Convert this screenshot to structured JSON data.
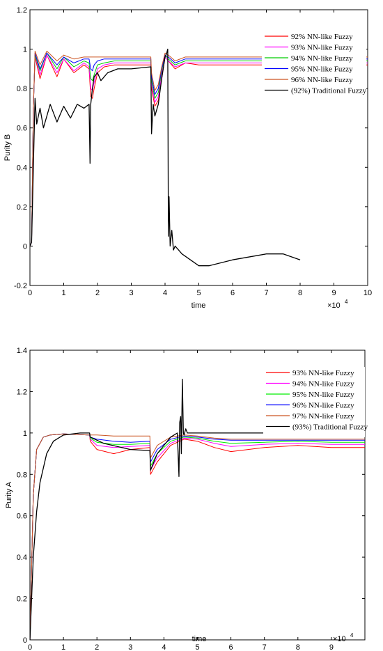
{
  "chart_data": [
    {
      "type": "line",
      "title": "",
      "xlabel": "time",
      "ylabel": "Purity B",
      "x_multiplier": "×10",
      "x_multiplier_exp": "4",
      "xlim": [
        0,
        10
      ],
      "ylim": [
        -0.2,
        1.2
      ],
      "xticks": [
        "0",
        "1",
        "2",
        "3",
        "4",
        "5",
        "6",
        "7",
        "8",
        "9",
        "10"
      ],
      "yticks": [
        "-0.2",
        "0",
        "0.2",
        "0.4",
        "0.6",
        "0.8",
        "1",
        "1.2"
      ],
      "grid": false,
      "legend_position": "top-right",
      "series": [
        {
          "name": "92% NN-like Fuzzy",
          "color": "#ff0000",
          "x": [
            0,
            0.05,
            0.1,
            0.15,
            0.3,
            0.5,
            0.8,
            1.0,
            1.3,
            1.6,
            1.75,
            1.8,
            1.85,
            1.9,
            2.0,
            2.2,
            2.5,
            3.0,
            3.58,
            3.6,
            3.7,
            3.8,
            3.9,
            4.0,
            4.1,
            4.3,
            4.6,
            5.0,
            6.0,
            8.0,
            10.0
          ],
          "y": [
            0,
            0.02,
            0.7,
            0.96,
            0.85,
            0.97,
            0.86,
            0.95,
            0.88,
            0.92,
            0.9,
            0.76,
            0.75,
            0.8,
            0.88,
            0.91,
            0.92,
            0.92,
            0.92,
            0.8,
            0.71,
            0.74,
            0.85,
            0.96,
            0.94,
            0.9,
            0.93,
            0.92,
            0.92,
            0.92,
            0.92
          ]
        },
        {
          "name": "93% NN-like Fuzzy",
          "color": "#ff00ff",
          "x": [
            0,
            0.05,
            0.1,
            0.15,
            0.3,
            0.5,
            0.8,
            1.0,
            1.3,
            1.6,
            1.75,
            1.8,
            1.85,
            1.9,
            2.0,
            2.2,
            2.5,
            3.0,
            3.58,
            3.6,
            3.7,
            3.8,
            3.9,
            4.0,
            4.1,
            4.3,
            4.6,
            5.0,
            6.0,
            8.0,
            10.0
          ],
          "y": [
            0,
            0.02,
            0.7,
            0.97,
            0.87,
            0.97,
            0.88,
            0.95,
            0.89,
            0.93,
            0.91,
            0.8,
            0.79,
            0.83,
            0.9,
            0.92,
            0.93,
            0.93,
            0.93,
            0.82,
            0.73,
            0.76,
            0.87,
            0.96,
            0.94,
            0.91,
            0.93,
            0.93,
            0.93,
            0.93,
            0.93
          ]
        },
        {
          "name": "94% NN-like Fuzzy",
          "color": "#00cc00",
          "x": [
            0,
            0.05,
            0.1,
            0.15,
            0.3,
            0.5,
            0.8,
            1.0,
            1.3,
            1.6,
            1.75,
            1.8,
            1.85,
            1.9,
            2.0,
            2.2,
            2.5,
            3.0,
            3.58,
            3.6,
            3.7,
            3.8,
            3.9,
            4.0,
            4.1,
            4.3,
            4.6,
            5.0,
            6.0,
            8.0,
            10.0
          ],
          "y": [
            0,
            0.02,
            0.7,
            0.97,
            0.89,
            0.98,
            0.9,
            0.96,
            0.91,
            0.94,
            0.93,
            0.85,
            0.84,
            0.87,
            0.92,
            0.93,
            0.94,
            0.94,
            0.94,
            0.84,
            0.75,
            0.78,
            0.89,
            0.97,
            0.95,
            0.92,
            0.94,
            0.94,
            0.94,
            0.94,
            0.94
          ]
        },
        {
          "name": "95% NN-like Fuzzy",
          "color": "#0000ff",
          "x": [
            0,
            0.05,
            0.1,
            0.15,
            0.3,
            0.5,
            0.8,
            1.0,
            1.3,
            1.6,
            1.75,
            1.8,
            1.85,
            1.9,
            2.0,
            2.2,
            2.5,
            3.0,
            3.58,
            3.6,
            3.7,
            3.8,
            3.9,
            4.0,
            4.1,
            4.3,
            4.6,
            5.0,
            6.0,
            8.0,
            10.0
          ],
          "y": [
            0,
            0.02,
            0.7,
            0.98,
            0.9,
            0.98,
            0.92,
            0.96,
            0.93,
            0.95,
            0.95,
            0.9,
            0.89,
            0.92,
            0.94,
            0.95,
            0.95,
            0.95,
            0.95,
            0.86,
            0.77,
            0.8,
            0.9,
            0.97,
            0.96,
            0.93,
            0.95,
            0.95,
            0.95,
            0.95,
            0.95
          ]
        },
        {
          "name": "96% NN-like Fuzzy",
          "color": "#cc5522",
          "x": [
            0,
            0.05,
            0.1,
            0.15,
            0.3,
            0.5,
            0.8,
            1.0,
            1.3,
            1.6,
            1.75,
            1.8,
            1.85,
            1.9,
            2.0,
            2.2,
            2.5,
            3.0,
            3.58,
            3.6,
            3.7,
            3.8,
            3.9,
            4.0,
            4.1,
            4.3,
            4.6,
            5.0,
            6.0,
            8.0,
            10.0
          ],
          "y": [
            0,
            0.02,
            0.7,
            0.99,
            0.92,
            0.99,
            0.94,
            0.97,
            0.95,
            0.96,
            0.96,
            0.96,
            0.96,
            0.96,
            0.96,
            0.96,
            0.96,
            0.96,
            0.96,
            0.88,
            0.79,
            0.82,
            0.91,
            0.98,
            0.97,
            0.94,
            0.96,
            0.96,
            0.96,
            0.96,
            0.96
          ]
        },
        {
          "name": "(92%) Traditional Fuzzy",
          "color": "#000000",
          "x": [
            0,
            0.05,
            0.1,
            0.15,
            0.2,
            0.3,
            0.4,
            0.6,
            0.8,
            1.0,
            1.2,
            1.4,
            1.6,
            1.75,
            1.78,
            1.8,
            1.85,
            1.9,
            2.0,
            2.1,
            2.3,
            2.6,
            3.0,
            3.58,
            3.6,
            3.65,
            3.7,
            3.8,
            3.9,
            4.0,
            4.05,
            4.08,
            4.1,
            4.12,
            4.15,
            4.2,
            4.25,
            4.3,
            4.5,
            5.0,
            5.3,
            6.0,
            7.0,
            7.5,
            8.0
          ],
          "y": [
            0,
            0.02,
            0.4,
            0.75,
            0.62,
            0.7,
            0.6,
            0.72,
            0.63,
            0.71,
            0.65,
            0.72,
            0.7,
            0.72,
            0.42,
            0.72,
            0.8,
            0.86,
            0.88,
            0.84,
            0.88,
            0.9,
            0.9,
            0.91,
            0.57,
            0.72,
            0.66,
            0.72,
            0.85,
            0.96,
            0.98,
            1.0,
            0.05,
            0.25,
            0.0,
            0.08,
            -0.02,
            0.0,
            -0.04,
            -0.1,
            -0.1,
            -0.07,
            -0.04,
            -0.04,
            -0.07
          ]
        }
      ]
    },
    {
      "type": "line",
      "title": "",
      "xlabel": "time",
      "ylabel": "Purity A",
      "x_multiplier": "×10",
      "x_multiplier_exp": "4",
      "xlim": [
        0,
        10
      ],
      "ylim": [
        0,
        1.4
      ],
      "xticks": [
        "0",
        "1",
        "2",
        "3",
        "4",
        "5",
        "6",
        "7",
        "8",
        "9"
      ],
      "yticks": [
        "0",
        "0.2",
        "0.4",
        "0.6",
        "0.8",
        "1",
        "1.2",
        "1.4"
      ],
      "grid": false,
      "legend_position": "top-right",
      "series": [
        {
          "name": "93% NN-like Fuzzy",
          "color": "#ff0000",
          "x": [
            0,
            0.1,
            0.2,
            0.4,
            0.6,
            1.0,
            1.78,
            1.8,
            2.0,
            2.5,
            3.0,
            3.58,
            3.6,
            3.8,
            4.2,
            4.6,
            5.0,
            5.5,
            6.0,
            7.0,
            8.0,
            9.0,
            10.0
          ],
          "y": [
            0,
            0.7,
            0.92,
            0.98,
            0.99,
            0.995,
            0.99,
            0.96,
            0.92,
            0.9,
            0.92,
            0.93,
            0.8,
            0.86,
            0.94,
            0.97,
            0.96,
            0.93,
            0.91,
            0.93,
            0.94,
            0.93,
            0.93
          ]
        },
        {
          "name": "94% NN-like Fuzzy",
          "color": "#ff00ff",
          "x": [
            0,
            0.1,
            0.2,
            0.4,
            0.6,
            1.0,
            1.78,
            1.8,
            2.0,
            2.5,
            3.0,
            3.58,
            3.6,
            3.8,
            4.2,
            4.6,
            5.0,
            5.5,
            6.0,
            7.0,
            8.0,
            9.0,
            10.0
          ],
          "y": [
            0,
            0.7,
            0.92,
            0.98,
            0.99,
            0.995,
            0.99,
            0.97,
            0.94,
            0.93,
            0.935,
            0.94,
            0.82,
            0.88,
            0.95,
            0.975,
            0.97,
            0.95,
            0.935,
            0.945,
            0.95,
            0.945,
            0.945
          ]
        },
        {
          "name": "95% NN-like Fuzzy",
          "color": "#00ee00",
          "x": [
            0,
            0.1,
            0.2,
            0.4,
            0.6,
            1.0,
            1.78,
            1.8,
            2.0,
            2.5,
            3.0,
            3.58,
            3.6,
            3.8,
            4.2,
            4.6,
            5.0,
            5.5,
            6.0,
            7.0,
            8.0,
            9.0,
            10.0
          ],
          "y": [
            0,
            0.7,
            0.92,
            0.98,
            0.99,
            0.995,
            0.99,
            0.975,
            0.955,
            0.945,
            0.945,
            0.95,
            0.84,
            0.9,
            0.96,
            0.98,
            0.975,
            0.96,
            0.95,
            0.955,
            0.96,
            0.955,
            0.955
          ]
        },
        {
          "name": "96% NN-like Fuzzy",
          "color": "#0000ff",
          "x": [
            0,
            0.1,
            0.2,
            0.4,
            0.6,
            1.0,
            1.78,
            1.8,
            2.0,
            2.5,
            3.0,
            3.58,
            3.6,
            3.8,
            4.2,
            4.6,
            5.0,
            5.5,
            6.0,
            7.0,
            8.0,
            9.0,
            10.0
          ],
          "y": [
            0,
            0.7,
            0.92,
            0.98,
            0.99,
            0.995,
            0.99,
            0.98,
            0.97,
            0.96,
            0.955,
            0.96,
            0.86,
            0.92,
            0.97,
            0.985,
            0.98,
            0.97,
            0.965,
            0.965,
            0.965,
            0.965,
            0.965
          ]
        },
        {
          "name": "97% NN-like Fuzzy",
          "color": "#cc5522",
          "x": [
            0,
            0.1,
            0.2,
            0.4,
            0.6,
            1.0,
            1.78,
            1.8,
            2.0,
            2.5,
            3.0,
            3.58,
            3.6,
            3.8,
            4.2,
            4.6,
            5.0,
            5.5,
            6.0,
            7.0,
            8.0,
            9.0,
            10.0
          ],
          "y": [
            0,
            0.7,
            0.92,
            0.98,
            0.99,
            0.995,
            0.99,
            0.99,
            0.99,
            0.985,
            0.985,
            0.985,
            0.88,
            0.94,
            0.98,
            0.99,
            0.985,
            0.975,
            0.97,
            0.97,
            0.97,
            0.97,
            0.97
          ]
        },
        {
          "name": "(93%) Traditional Fuzzy",
          "color": "#000000",
          "x": [
            0,
            0.1,
            0.2,
            0.3,
            0.5,
            0.7,
            1.0,
            1.5,
            1.78,
            1.8,
            2.2,
            3.0,
            3.58,
            3.6,
            3.8,
            4.2,
            4.4,
            4.45,
            4.47,
            4.5,
            4.52,
            4.55,
            4.58,
            4.6,
            4.65,
            4.7,
            4.8,
            5.0,
            6.0,
            8.0
          ],
          "y": [
            0,
            0.4,
            0.62,
            0.76,
            0.9,
            0.96,
            0.99,
            1.0,
            1.0,
            0.98,
            0.95,
            0.92,
            0.915,
            0.82,
            0.9,
            0.98,
            1.0,
            0.79,
            1.05,
            1.08,
            0.9,
            1.26,
            1.0,
            0.99,
            1.02,
            1.0,
            1.0,
            1.0,
            1.0,
            1.0
          ]
        }
      ]
    }
  ]
}
